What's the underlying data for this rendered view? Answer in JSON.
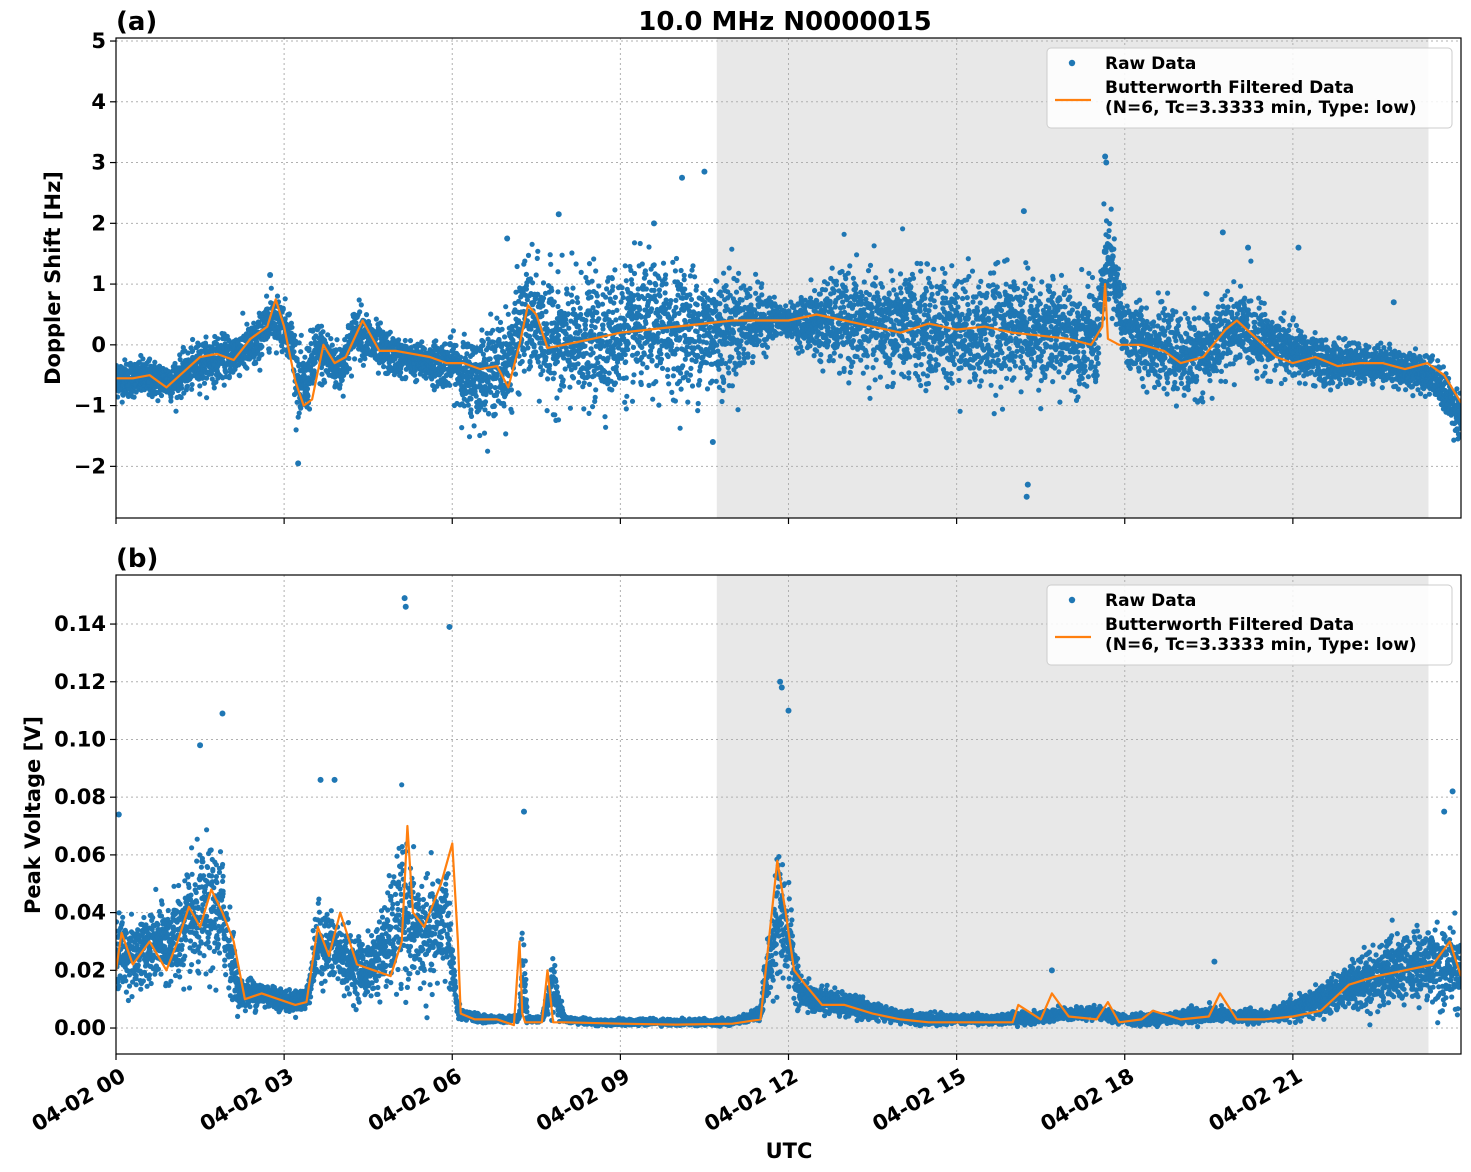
{
  "figure": {
    "title": "10.0 MHz N0000015",
    "xlabel": "UTC"
  },
  "colors": {
    "raw": "#1f77b4",
    "filtered": "#ff7f0e",
    "shade": "#e8e8e8",
    "grid": "#b0b0b0"
  },
  "chart_data": [
    {
      "type": "scatter",
      "panel_label": "(a)",
      "ylabel": "Doppler Shift [Hz]",
      "ylim": [
        -2.85,
        5.05
      ],
      "xlim": [
        0,
        24
      ],
      "x_unit": "hours UTC on 04-02",
      "y_ticks": [
        -2,
        -1,
        0,
        1,
        2,
        3,
        4,
        5
      ],
      "y_tick_labels": [
        "−2",
        "−1",
        "0",
        "1",
        "2",
        "3",
        "4",
        "5"
      ],
      "x_ticks": [
        0,
        3,
        6,
        9,
        12,
        15,
        18,
        21
      ],
      "x_tick_labels": [
        "04-02 00",
        "04-02 03",
        "04-02 06",
        "04-02 09",
        "04-02 12",
        "04-02 15",
        "04-02 18",
        "04-02 21"
      ],
      "grid": true,
      "legend_position": "top-right",
      "shaded_region": [
        10.72,
        23.42
      ],
      "series": [
        {
          "name": "Raw Data",
          "style": "points",
          "x": [
            0,
            0.5,
            1,
            1.5,
            2,
            2.5,
            2.8,
            3.1,
            3.3,
            3.6,
            4,
            4.3,
            4.7,
            5,
            5.5,
            6,
            6.3,
            6.7,
            7,
            7.3,
            7.6,
            8,
            8.5,
            9,
            9.5,
            10,
            10.5,
            11,
            11.5,
            12,
            12.5,
            13,
            13.5,
            14,
            14.5,
            15,
            15.5,
            16,
            16.5,
            17,
            17.5,
            17.7,
            18,
            18.5,
            19,
            19.5,
            20,
            20.5,
            21,
            21.5,
            22,
            22.5,
            23,
            23.5,
            24
          ],
          "y": [
            -0.55,
            -0.55,
            -0.6,
            -0.3,
            -0.2,
            0.0,
            0.5,
            0.2,
            -0.8,
            -0.1,
            -0.4,
            0.3,
            -0.1,
            -0.2,
            -0.3,
            -0.3,
            -0.6,
            -0.4,
            -0.3,
            0.5,
            0.2,
            0.0,
            0.1,
            0.2,
            0.3,
            0.3,
            0.2,
            0.3,
            0.4,
            0.4,
            0.35,
            0.4,
            0.3,
            0.3,
            0.25,
            0.3,
            0.2,
            0.3,
            0.2,
            0.2,
            0.1,
            1.5,
            0.2,
            0.0,
            -0.2,
            -0.1,
            0.3,
            0.1,
            -0.1,
            -0.3,
            -0.3,
            -0.3,
            -0.4,
            -0.5,
            -1.2
          ],
          "spread": [
            0.3,
            0.3,
            0.3,
            0.35,
            0.35,
            0.4,
            0.4,
            0.4,
            0.6,
            0.5,
            0.4,
            0.4,
            0.4,
            0.3,
            0.3,
            0.4,
            0.7,
            0.7,
            0.8,
            0.9,
            1.0,
            1.0,
            1.0,
            1.0,
            1.0,
            1.0,
            1.0,
            0.9,
            0.5,
            0.2,
            0.6,
            0.8,
            0.8,
            0.9,
            0.9,
            0.9,
            0.9,
            0.9,
            0.8,
            0.8,
            0.8,
            0.8,
            0.6,
            0.6,
            0.6,
            0.7,
            0.6,
            0.5,
            0.4,
            0.4,
            0.3,
            0.3,
            0.3,
            0.3,
            0.4
          ],
          "outliers": [
            [
              2.75,
              1.15
            ],
            [
              3.25,
              -1.95
            ],
            [
              6.98,
              1.75
            ],
            [
              7.9,
              2.15
            ],
            [
              9.6,
              2.0
            ],
            [
              10.1,
              2.75
            ],
            [
              10.5,
              2.85
            ],
            [
              10.65,
              -1.6
            ],
            [
              16.2,
              2.2
            ],
            [
              16.25,
              -2.5
            ],
            [
              16.27,
              -2.3
            ],
            [
              17.65,
              3.1
            ],
            [
              17.67,
              3.0
            ],
            [
              19.75,
              1.85
            ],
            [
              20.2,
              1.6
            ],
            [
              21.1,
              1.6
            ],
            [
              22.8,
              0.7
            ]
          ]
        },
        {
          "name": "Butterworth Filtered Data\n(N=6, Tc=3.3333 min, Type: low)",
          "style": "line",
          "x": [
            0,
            0.3,
            0.6,
            0.9,
            1.2,
            1.5,
            1.8,
            2.1,
            2.4,
            2.7,
            2.85,
            3.0,
            3.2,
            3.35,
            3.5,
            3.7,
            3.9,
            4.1,
            4.4,
            4.7,
            5.0,
            5.3,
            5.6,
            5.9,
            6.2,
            6.5,
            6.8,
            7.0,
            7.2,
            7.35,
            7.5,
            7.7,
            8.0,
            8.5,
            9.0,
            9.5,
            10.0,
            10.5,
            11.0,
            11.5,
            12.0,
            12.5,
            13.0,
            13.5,
            14.0,
            14.5,
            15.0,
            15.5,
            16.0,
            16.5,
            17.0,
            17.4,
            17.6,
            17.65,
            17.7,
            17.9,
            18.3,
            18.7,
            19.0,
            19.4,
            19.8,
            20.0,
            20.3,
            20.7,
            21.0,
            21.4,
            21.8,
            22.2,
            22.6,
            23.0,
            23.4,
            23.7,
            24.0
          ],
          "y": [
            -0.55,
            -0.55,
            -0.5,
            -0.7,
            -0.45,
            -0.2,
            -0.15,
            -0.25,
            0.1,
            0.3,
            0.75,
            0.3,
            -0.6,
            -1.0,
            -0.9,
            0.0,
            -0.3,
            -0.2,
            0.4,
            -0.1,
            -0.1,
            -0.15,
            -0.2,
            -0.3,
            -0.3,
            -0.4,
            -0.35,
            -0.7,
            0.0,
            0.65,
            0.5,
            -0.05,
            0.0,
            0.1,
            0.2,
            0.25,
            0.3,
            0.35,
            0.4,
            0.4,
            0.4,
            0.5,
            0.4,
            0.3,
            0.2,
            0.35,
            0.25,
            0.3,
            0.2,
            0.15,
            0.1,
            0.0,
            0.3,
            1.0,
            0.1,
            0.0,
            0.0,
            -0.1,
            -0.3,
            -0.2,
            0.25,
            0.4,
            0.15,
            -0.2,
            -0.3,
            -0.2,
            -0.35,
            -0.3,
            -0.3,
            -0.4,
            -0.3,
            -0.5,
            -0.95
          ]
        }
      ]
    },
    {
      "type": "scatter",
      "panel_label": "(b)",
      "ylabel": "Peak Voltage [V]",
      "ylim": [
        -0.009,
        0.157
      ],
      "xlim": [
        0,
        24
      ],
      "x_unit": "hours UTC on 04-02",
      "y_ticks": [
        0.0,
        0.02,
        0.04,
        0.06,
        0.08,
        0.1,
        0.12,
        0.14
      ],
      "y_tick_labels": [
        "0.00",
        "0.02",
        "0.04",
        "0.06",
        "0.08",
        "0.10",
        "0.12",
        "0.14"
      ],
      "x_ticks": [
        0,
        3,
        6,
        9,
        12,
        15,
        18,
        21
      ],
      "x_tick_labels": [
        "04-02 00",
        "04-02 03",
        "04-02 06",
        "04-02 09",
        "04-02 12",
        "04-02 15",
        "04-02 18",
        "04-02 21"
      ],
      "grid": true,
      "legend_position": "top-right",
      "shaded_region": [
        10.72,
        23.42
      ],
      "series": [
        {
          "name": "Raw Data",
          "style": "points",
          "x": [
            0,
            0.3,
            0.6,
            1.0,
            1.3,
            1.6,
            1.9,
            2.2,
            2.5,
            2.8,
            3.1,
            3.4,
            3.6,
            3.9,
            4.2,
            4.5,
            4.8,
            5.1,
            5.3,
            5.6,
            5.9,
            6.1,
            6.3,
            6.6,
            7.0,
            7.2,
            7.25,
            7.35,
            7.6,
            7.8,
            8.0,
            8.5,
            9.0,
            9.5,
            10.0,
            10.5,
            11.0,
            11.5,
            11.8,
            12.0,
            12.2,
            12.5,
            13.0,
            13.5,
            14.0,
            14.5,
            15.0,
            15.5,
            16.0,
            16.5,
            17.0,
            17.5,
            18.0,
            18.5,
            19.0,
            19.5,
            20.0,
            20.5,
            21.0,
            21.5,
            22.0,
            22.5,
            23.0,
            23.5,
            24.0
          ],
          "y": [
            0.025,
            0.025,
            0.028,
            0.03,
            0.035,
            0.04,
            0.04,
            0.012,
            0.012,
            0.011,
            0.009,
            0.01,
            0.03,
            0.027,
            0.022,
            0.02,
            0.028,
            0.04,
            0.035,
            0.03,
            0.04,
            0.005,
            0.004,
            0.003,
            0.003,
            0.004,
            0.02,
            0.003,
            0.003,
            0.015,
            0.003,
            0.002,
            0.002,
            0.002,
            0.002,
            0.002,
            0.002,
            0.005,
            0.04,
            0.03,
            0.012,
            0.01,
            0.008,
            0.006,
            0.004,
            0.003,
            0.003,
            0.003,
            0.003,
            0.004,
            0.005,
            0.005,
            0.003,
            0.003,
            0.004,
            0.005,
            0.004,
            0.004,
            0.006,
            0.01,
            0.015,
            0.018,
            0.02,
            0.022,
            0.02
          ],
          "spread": [
            0.015,
            0.012,
            0.012,
            0.015,
            0.018,
            0.022,
            0.02,
            0.005,
            0.005,
            0.004,
            0.003,
            0.004,
            0.012,
            0.012,
            0.01,
            0.01,
            0.015,
            0.025,
            0.02,
            0.018,
            0.02,
            0.002,
            0.0015,
            0.0012,
            0.001,
            0.001,
            0.02,
            0.001,
            0.001,
            0.008,
            0.001,
            0.001,
            0.001,
            0.001,
            0.001,
            0.001,
            0.001,
            0.002,
            0.02,
            0.015,
            0.005,
            0.004,
            0.004,
            0.003,
            0.002,
            0.002,
            0.0015,
            0.0015,
            0.002,
            0.002,
            0.002,
            0.002,
            0.0015,
            0.002,
            0.002,
            0.003,
            0.002,
            0.002,
            0.003,
            0.005,
            0.008,
            0.01,
            0.012,
            0.013,
            0.012
          ],
          "outliers": [
            [
              0.05,
              0.074
            ],
            [
              1.9,
              0.109
            ],
            [
              1.5,
              0.098
            ],
            [
              3.65,
              0.086
            ],
            [
              3.9,
              0.086
            ],
            [
              5.15,
              0.149
            ],
            [
              5.17,
              0.146
            ],
            [
              5.95,
              0.139
            ],
            [
              7.28,
              0.075
            ],
            [
              11.85,
              0.12
            ],
            [
              11.88,
              0.118
            ],
            [
              12.0,
              0.11
            ],
            [
              16.7,
              0.02
            ],
            [
              19.6,
              0.023
            ],
            [
              23.85,
              0.082
            ],
            [
              23.7,
              0.075
            ]
          ]
        },
        {
          "name": "Butterworth Filtered Data\n(N=6, Tc=3.3333 min, Type: low)",
          "style": "line",
          "x": [
            0,
            0.1,
            0.3,
            0.6,
            0.9,
            1.1,
            1.3,
            1.5,
            1.7,
            1.9,
            2.1,
            2.3,
            2.6,
            2.9,
            3.2,
            3.4,
            3.6,
            3.8,
            4.0,
            4.3,
            4.6,
            4.9,
            5.1,
            5.2,
            5.3,
            5.5,
            5.8,
            6.0,
            6.1,
            6.15,
            6.4,
            6.8,
            7.1,
            7.2,
            7.25,
            7.3,
            7.4,
            7.6,
            7.7,
            7.8,
            8.0,
            9.0,
            10.0,
            11.0,
            11.5,
            11.8,
            11.95,
            12.1,
            12.3,
            12.6,
            13.0,
            13.5,
            14.0,
            14.5,
            15.0,
            15.5,
            16.0,
            16.1,
            16.5,
            16.7,
            17.0,
            17.5,
            17.7,
            17.9,
            18.3,
            18.5,
            19.0,
            19.5,
            19.7,
            20.0,
            20.5,
            21.0,
            21.5,
            22.0,
            22.5,
            23.0,
            23.5,
            23.8,
            24.0
          ],
          "y": [
            0.02,
            0.033,
            0.022,
            0.03,
            0.02,
            0.03,
            0.042,
            0.035,
            0.048,
            0.04,
            0.03,
            0.01,
            0.012,
            0.01,
            0.008,
            0.009,
            0.035,
            0.025,
            0.04,
            0.022,
            0.02,
            0.018,
            0.03,
            0.07,
            0.04,
            0.035,
            0.05,
            0.064,
            0.03,
            0.005,
            0.003,
            0.003,
            0.001,
            0.03,
            0.005,
            0.002,
            0.002,
            0.002,
            0.02,
            0.002,
            0.002,
            0.0015,
            0.0012,
            0.0015,
            0.003,
            0.058,
            0.04,
            0.02,
            0.015,
            0.008,
            0.008,
            0.005,
            0.003,
            0.002,
            0.002,
            0.002,
            0.002,
            0.008,
            0.003,
            0.012,
            0.004,
            0.003,
            0.009,
            0.002,
            0.003,
            0.006,
            0.003,
            0.004,
            0.012,
            0.003,
            0.003,
            0.004,
            0.006,
            0.015,
            0.018,
            0.02,
            0.022,
            0.03,
            0.018
          ]
        }
      ]
    }
  ]
}
